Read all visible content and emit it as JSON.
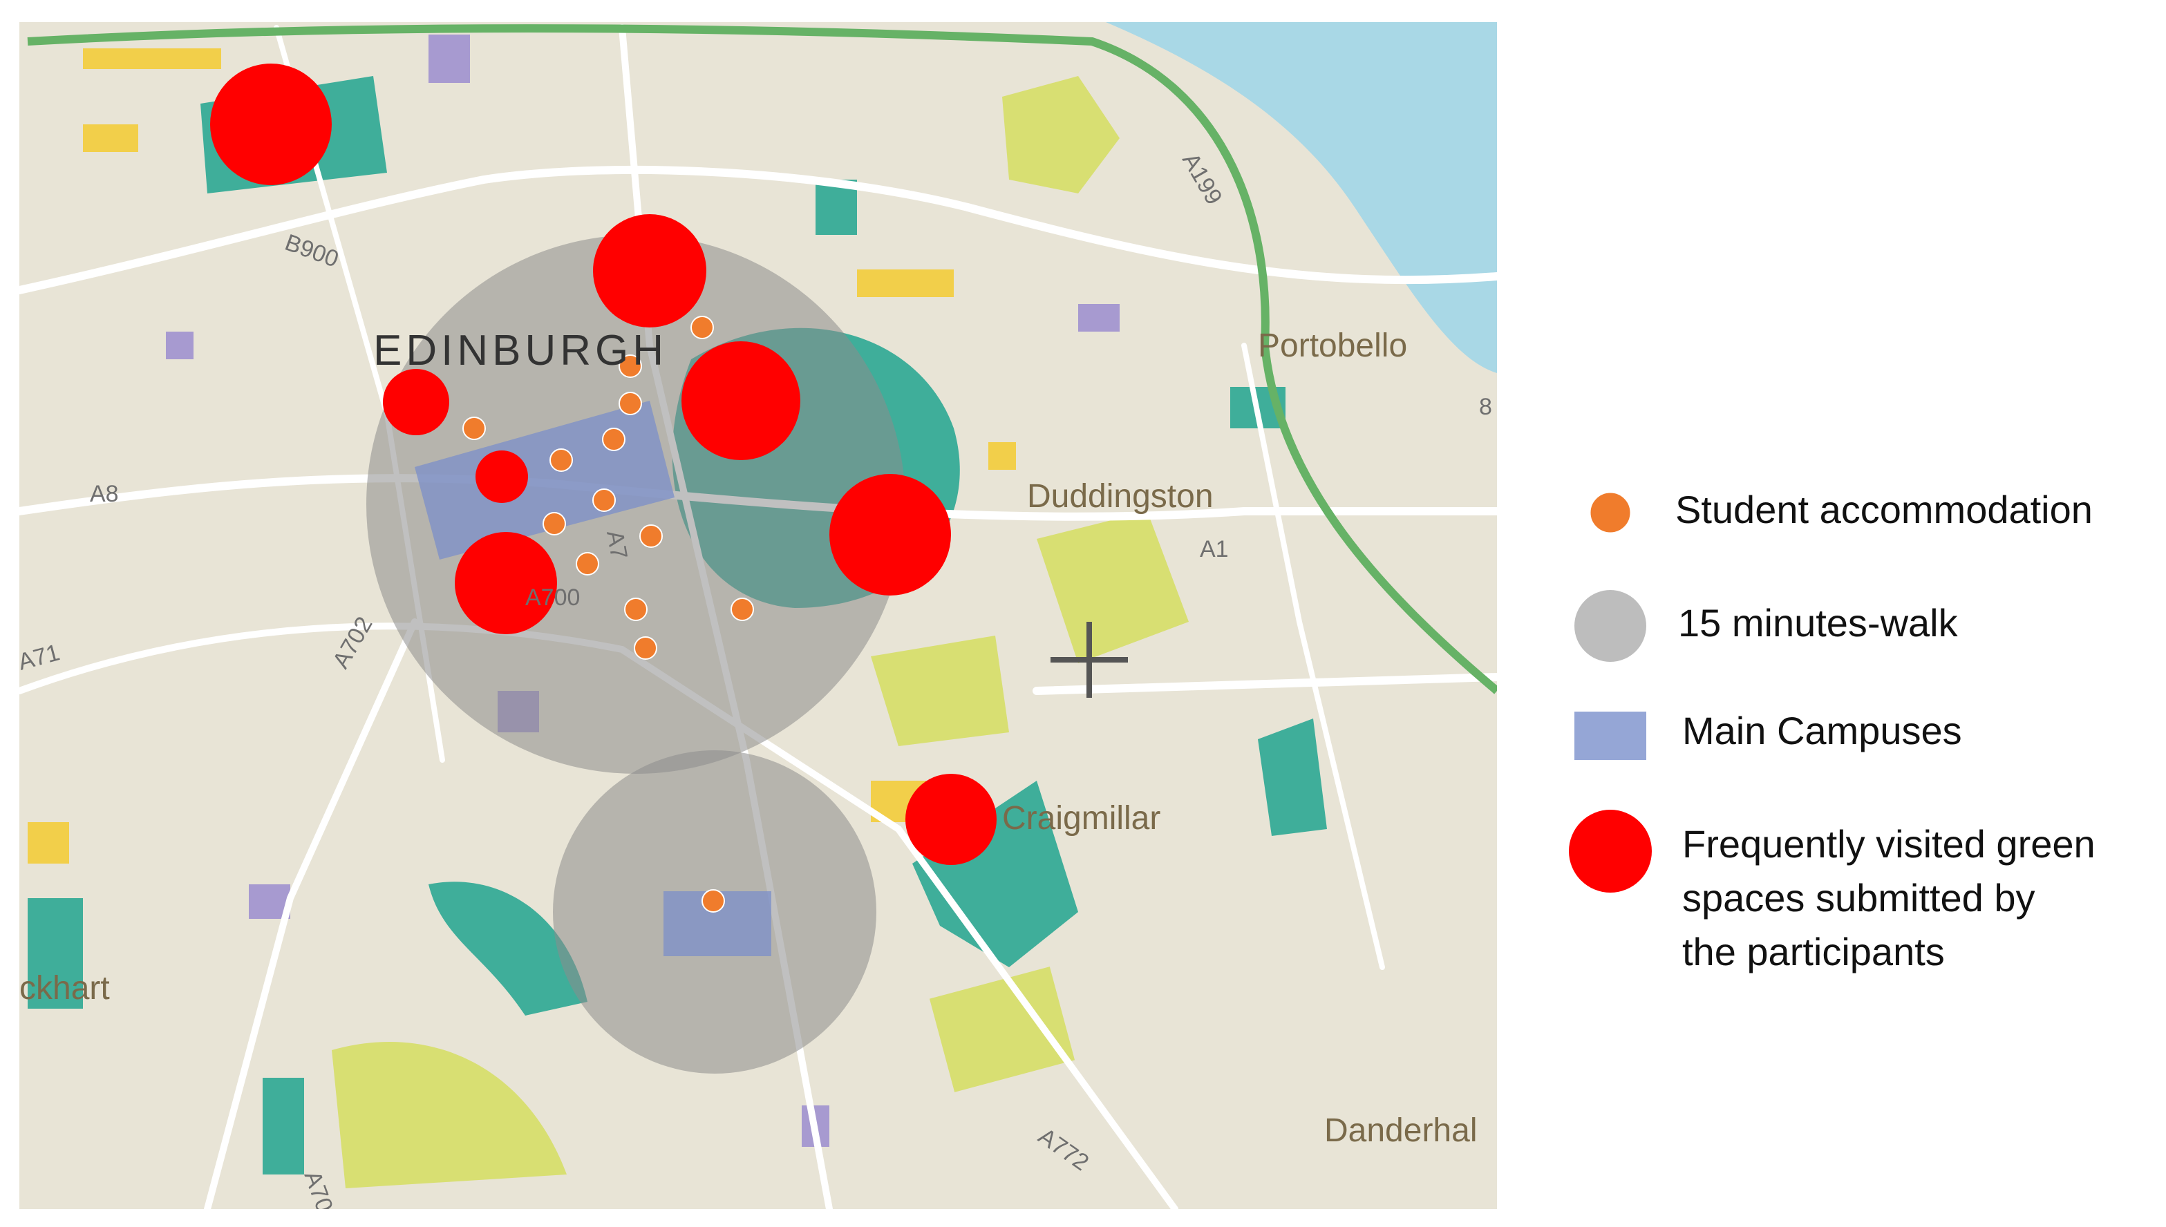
{
  "map": {
    "labels": {
      "city": "EDINBURGH",
      "portobello": "Portobello",
      "duddingston": "Duddingston",
      "craigmillar": "Craigmillar",
      "danderhall": "Danderhal",
      "ckhart": "ckhart",
      "b900": "B900",
      "a199": "A199",
      "a8": "A8",
      "a1": "A1",
      "a71": "A71",
      "a702": "A702",
      "a7": "A7",
      "a700": "A700",
      "a70": "A70",
      "a772": "A772",
      "edge8": "8"
    }
  },
  "legend": {
    "items": [
      {
        "label": [
          "Student accommodation"
        ]
      },
      {
        "label": [
          "15 minutes-walk"
        ]
      },
      {
        "label": [
          "Main Campuses"
        ]
      },
      {
        "label": [
          "Frequently visited green",
          "spaces submitted by",
          "the participants"
        ]
      }
    ]
  }
}
